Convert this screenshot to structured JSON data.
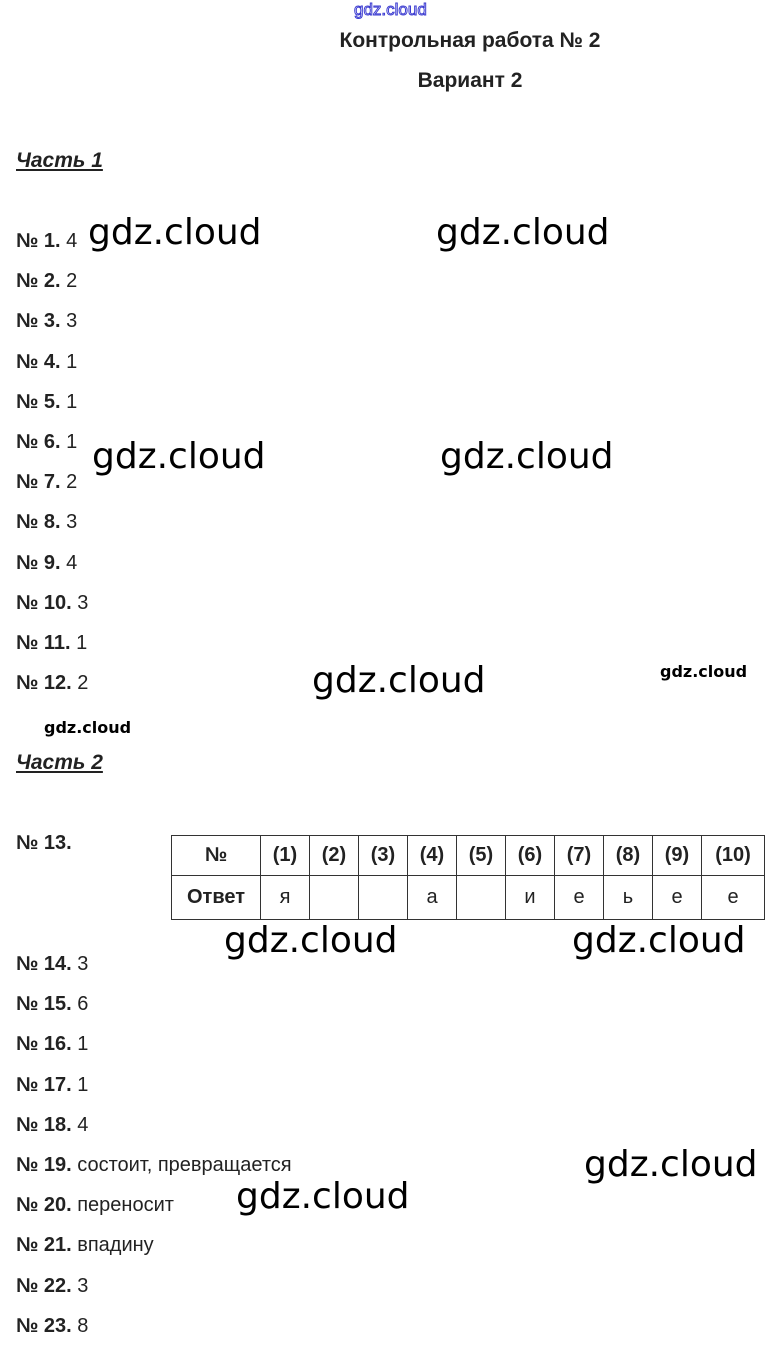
{
  "watermark": "gdz.cloud",
  "title": "Контрольная работа № 2",
  "variant": "Вариант 2",
  "part1": {
    "heading": "Часть 1",
    "items": [
      {
        "num": "№ 1.",
        "answer": "4"
      },
      {
        "num": "№ 2.",
        "answer": "2"
      },
      {
        "num": "№ 3.",
        "answer": "3"
      },
      {
        "num": "№ 4.",
        "answer": "1"
      },
      {
        "num": "№ 5.",
        "answer": "1"
      },
      {
        "num": "№ 6.",
        "answer": "1"
      },
      {
        "num": "№ 7.",
        "answer": "2"
      },
      {
        "num": "№ 8.",
        "answer": "3"
      },
      {
        "num": "№ 9.",
        "answer": "4"
      },
      {
        "num": "№ 10.",
        "answer": "3"
      },
      {
        "num": "№ 11.",
        "answer": "1"
      },
      {
        "num": "№ 12.",
        "answer": "2"
      }
    ]
  },
  "part2": {
    "heading": "Часть 2",
    "item13": "№ 13.",
    "table": {
      "header": [
        "№",
        "(1)",
        "(2)",
        "(3)",
        "(4)",
        "(5)",
        "(6)",
        "(7)",
        "(8)",
        "(9)",
        "(10)"
      ],
      "answers": [
        "Ответ",
        "я",
        "",
        "",
        "а",
        "",
        "и",
        "е",
        "ь",
        "е",
        "е"
      ]
    },
    "items": [
      {
        "num": "№ 14.",
        "answer": "3"
      },
      {
        "num": "№ 15.",
        "answer": "6"
      },
      {
        "num": "№ 16.",
        "answer": "1"
      },
      {
        "num": "№ 17.",
        "answer": "1"
      },
      {
        "num": "№ 18.",
        "answer": "4"
      },
      {
        "num": "№ 19.",
        "answer": "состоит, превращается"
      },
      {
        "num": "№ 20.",
        "answer": "переносит"
      },
      {
        "num": "№ 21.",
        "answer": "впадину"
      },
      {
        "num": "№ 22.",
        "answer": "3"
      },
      {
        "num": "№ 23.",
        "answer": "8"
      }
    ]
  }
}
